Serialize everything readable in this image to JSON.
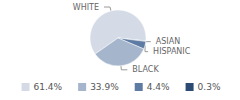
{
  "chart_data": {
    "type": "pie",
    "categories": [
      "WHITE",
      "ASIAN",
      "HISPANIC",
      "BLACK"
    ],
    "values": [
      61.4,
      0.3,
      4.4,
      33.9
    ],
    "value_labels": [
      "61.4%",
      "0.3%",
      "4.4%",
      "33.9%"
    ],
    "colors": [
      "#d5dbe6",
      "#2c4a72",
      "#5e7ca3",
      "#a5b5cc"
    ],
    "legend": "bottom"
  }
}
